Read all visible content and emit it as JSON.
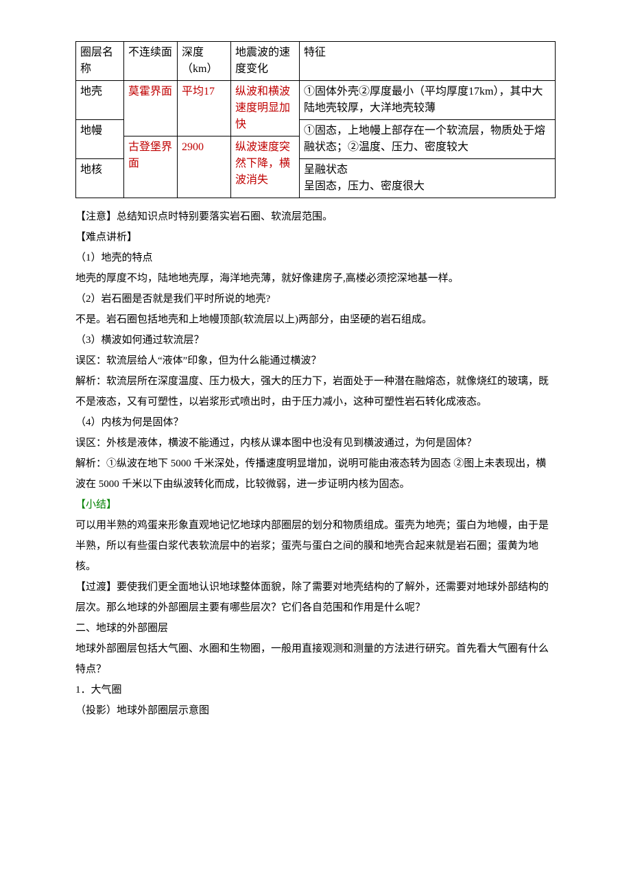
{
  "table": {
    "headers": [
      "圈层名称",
      "不连续面",
      "深度（km）",
      "地震波的速度变化",
      "特征"
    ],
    "rows": {
      "r1_name": "地壳",
      "r1_feature": "①固体外壳②厚度最小（平均厚度17km），其中大陆地壳较厚，大洋地壳较薄",
      "boundary1": "莫霍界面",
      "depth1": "平均17",
      "wave1": "纵波和横波速度明显加快",
      "r2_name": "地幔",
      "r2_feature": "①固态，上地幔上部存在一个软流层，物质处于熔融状态；②温度、压力、密度较大",
      "boundary2": "古登堡界面",
      "depth2": "2900",
      "wave2": "纵波速度突然下降，横波消失",
      "r3_name": "地核",
      "r3_feature_a": "呈融状态",
      "r3_feature_b": "呈固态，压力、密度很大"
    }
  },
  "body": {
    "p1": "【注意】总结知识点时特别要落实岩石圈、软流层范围。",
    "p2": "【难点讲析】",
    "p3": "（1）地壳的特点",
    "p4": "地壳的厚度不均，陆地地壳厚，海洋地壳薄，就好像建房子,高楼必须挖深地基一样。",
    "p5": "（2）岩石圈是否就是我们平时所说的地壳?",
    "p6": "不是。岩石圈包括地壳和上地幔顶部(软流层以上)两部分，由坚硬的岩石组成。",
    "p7": "（3）横波如何通过软流层？",
    "p8": "误区：软流层给人“液体”印象，但为什么能通过横波？",
    "p9": "解析：软流层所在深度温度、压力极大，强大的压力下，岩面处于一种潜在融熔态，就像烧红的玻璃，既不是液态，又有可塑性，以岩浆形式喷出时，由于压力减小，这种可塑性岩石转化成液态。",
    "p10": "（4）内核为何是固体？",
    "p11": "误区：外核是液体，横波不能通过，内核从课本图中也没有见到横波通过，为何是固体？",
    "p12": "解析：①纵波在地下 5000 千米深处，传播速度明显增加，说明可能由液态转为固态 ②图上未表现出，横波在 5000 千米以下由纵波转化而成，比较微弱，进一步证明内核为固态。",
    "p13": "【小结】",
    "p14": "可以用半熟的鸡蛋来形象直观地记忆地球内部圈层的划分和物质组成。蛋壳为地壳；蛋白为地幔，由于是半熟，所以有些蛋白浆代表软流层中的岩浆；蛋壳与蛋白之间的膜和地壳合起来就是岩石圈；蛋黄为地核。",
    "p15": "【过渡】要使我们更全面地认识地球整体面貌，除了需要对地壳结构的了解外，还需要对地球外部结构的层次。那么地球的外部圈层主要有哪些层次？它们各自范围和作用是什么呢？",
    "p16": "二、地球的外部圈层",
    "p17": "地球外部圈层包括大气圈、水圈和生物圈，一般用直接观测和测量的方法进行研究。首先看大气圈有什么特点？",
    "p18": "1．大气圈",
    "p19": "（投影）地球外部圈层示意图"
  },
  "colors": {
    "red": "#bf0000",
    "green": "#008000",
    "text": "#000000",
    "background": "#ffffff",
    "border": "#000000"
  },
  "fontsize_body": 15,
  "fontsize_table": 16
}
